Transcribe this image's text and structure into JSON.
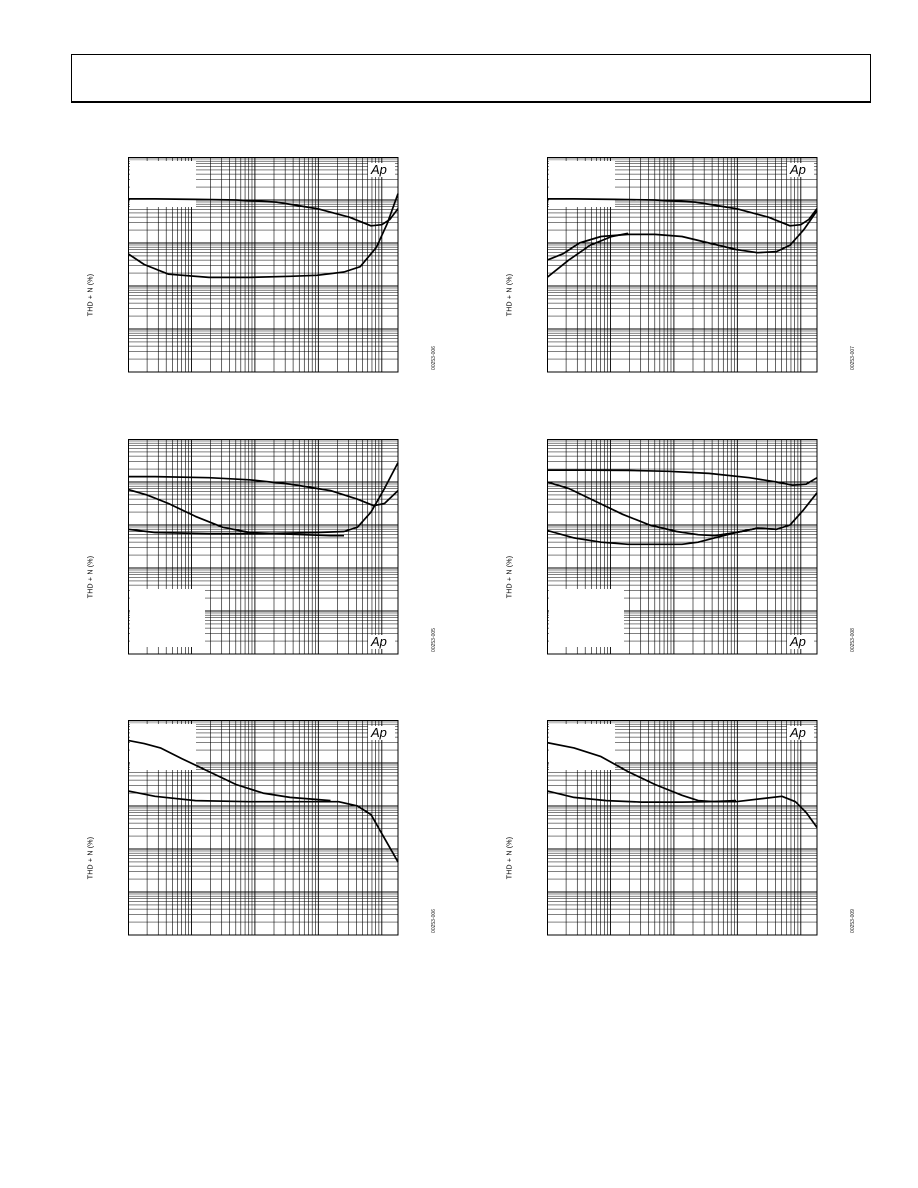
{
  "header": {},
  "chart_data": [
    {
      "type": "line",
      "ylabel": "THD + N (%)",
      "figure_id": "00253-006",
      "logo": "Ap",
      "logo_position": "top-right",
      "grid": true,
      "x_scale": "log",
      "y_scale": "log",
      "series": [
        {
          "points": [
            [
              0,
              0.805
            ],
            [
              0.1,
              0.805
            ],
            [
              0.25,
              0.803
            ],
            [
              0.4,
              0.8
            ],
            [
              0.55,
              0.79
            ],
            [
              0.7,
              0.76
            ],
            [
              0.82,
              0.72
            ],
            [
              0.9,
              0.68
            ],
            [
              0.94,
              0.685
            ],
            [
              0.97,
              0.71
            ],
            [
              1.0,
              0.76
            ]
          ]
        },
        {
          "points": [
            [
              0,
              0.55
            ],
            [
              0.06,
              0.5
            ],
            [
              0.15,
              0.455
            ],
            [
              0.3,
              0.44
            ],
            [
              0.45,
              0.44
            ],
            [
              0.6,
              0.445
            ],
            [
              0.7,
              0.45
            ],
            [
              0.8,
              0.465
            ],
            [
              0.86,
              0.49
            ],
            [
              0.92,
              0.58
            ],
            [
              0.96,
              0.69
            ],
            [
              1.0,
              0.83
            ]
          ]
        }
      ]
    },
    {
      "type": "line",
      "ylabel": "THD + N (%)",
      "figure_id": "00253-007",
      "logo": "Ap",
      "logo_position": "top-right",
      "grid": true,
      "x_scale": "log",
      "y_scale": "log",
      "series": [
        {
          "points": [
            [
              0,
              0.805
            ],
            [
              0.1,
              0.805
            ],
            [
              0.25,
              0.803
            ],
            [
              0.4,
              0.8
            ],
            [
              0.55,
              0.79
            ],
            [
              0.7,
              0.76
            ],
            [
              0.82,
              0.72
            ],
            [
              0.9,
              0.68
            ],
            [
              0.94,
              0.685
            ],
            [
              0.97,
              0.71
            ],
            [
              1.0,
              0.76
            ]
          ]
        },
        {
          "points": [
            [
              0,
              0.52
            ],
            [
              0.06,
              0.55
            ],
            [
              0.12,
              0.6
            ],
            [
              0.2,
              0.63
            ],
            [
              0.3,
              0.64
            ],
            [
              0.4,
              0.64
            ],
            [
              0.5,
              0.63
            ],
            [
              0.6,
              0.6
            ],
            [
              0.7,
              0.57
            ],
            [
              0.78,
              0.555
            ],
            [
              0.85,
              0.56
            ],
            [
              0.9,
              0.59
            ],
            [
              0.95,
              0.66
            ],
            [
              1.0,
              0.75
            ]
          ]
        },
        {
          "points": [
            [
              0,
              0.44
            ],
            [
              0.08,
              0.52
            ],
            [
              0.16,
              0.59
            ],
            [
              0.24,
              0.63
            ],
            [
              0.3,
              0.645
            ]
          ]
        }
      ]
    },
    {
      "type": "line",
      "ylabel": "THD + N (%)",
      "figure_id": "00253-005",
      "logo": "Ap",
      "logo_position": "bottom-right",
      "grid": true,
      "x_scale": "log",
      "y_scale": "log",
      "series": [
        {
          "points": [
            [
              0,
              0.825
            ],
            [
              0.1,
              0.825
            ],
            [
              0.3,
              0.82
            ],
            [
              0.45,
              0.81
            ],
            [
              0.6,
              0.79
            ],
            [
              0.75,
              0.76
            ],
            [
              0.85,
              0.72
            ],
            [
              0.91,
              0.69
            ],
            [
              0.95,
              0.7
            ],
            [
              1.0,
              0.76
            ]
          ]
        },
        {
          "points": [
            [
              0,
              0.765
            ],
            [
              0.07,
              0.74
            ],
            [
              0.15,
              0.7
            ],
            [
              0.25,
              0.64
            ],
            [
              0.35,
              0.59
            ],
            [
              0.45,
              0.565
            ],
            [
              0.55,
              0.56
            ],
            [
              0.65,
              0.555
            ],
            [
              0.75,
              0.55
            ],
            [
              0.8,
              0.55
            ]
          ]
        },
        {
          "points": [
            [
              0,
              0.58
            ],
            [
              0.1,
              0.565
            ],
            [
              0.3,
              0.56
            ],
            [
              0.5,
              0.56
            ],
            [
              0.7,
              0.565
            ],
            [
              0.8,
              0.57
            ],
            [
              0.85,
              0.59
            ],
            [
              0.9,
              0.66
            ],
            [
              0.95,
              0.77
            ],
            [
              1.0,
              0.89
            ]
          ]
        }
      ]
    },
    {
      "type": "line",
      "ylabel": "THD + N (%)",
      "figure_id": "00253-008",
      "logo": "Ap",
      "logo_position": "bottom-right",
      "grid": true,
      "x_scale": "log",
      "y_scale": "log",
      "series": [
        {
          "points": [
            [
              0,
              0.855
            ],
            [
              0.15,
              0.855
            ],
            [
              0.3,
              0.854
            ],
            [
              0.45,
              0.85
            ],
            [
              0.6,
              0.84
            ],
            [
              0.75,
              0.82
            ],
            [
              0.85,
              0.8
            ],
            [
              0.91,
              0.785
            ],
            [
              0.96,
              0.79
            ],
            [
              1.0,
              0.82
            ]
          ]
        },
        {
          "points": [
            [
              0,
              0.8
            ],
            [
              0.08,
              0.77
            ],
            [
              0.18,
              0.71
            ],
            [
              0.28,
              0.65
            ],
            [
              0.38,
              0.6
            ],
            [
              0.48,
              0.57
            ],
            [
              0.56,
              0.555
            ],
            [
              0.62,
              0.55
            ],
            [
              0.7,
              0.565
            ],
            [
              0.78,
              0.585
            ],
            [
              0.85,
              0.58
            ],
            [
              0.9,
              0.6
            ],
            [
              0.95,
              0.67
            ],
            [
              1.0,
              0.75
            ]
          ]
        },
        {
          "points": [
            [
              0,
              0.575
            ],
            [
              0.1,
              0.54
            ],
            [
              0.2,
              0.52
            ],
            [
              0.3,
              0.51
            ],
            [
              0.4,
              0.51
            ],
            [
              0.5,
              0.51
            ],
            [
              0.56,
              0.52
            ],
            [
              0.62,
              0.54
            ],
            [
              0.7,
              0.565
            ],
            [
              0.78,
              0.585
            ],
            [
              0.85,
              0.58
            ]
          ]
        }
      ]
    },
    {
      "type": "line",
      "ylabel": "THD + N (%)",
      "figure_id": "00253-006",
      "logo": "Ap",
      "logo_position": "top-right",
      "grid": true,
      "x_scale": "log",
      "y_scale": "log",
      "series": [
        {
          "points": [
            [
              0,
              0.905
            ],
            [
              0.06,
              0.89
            ],
            [
              0.12,
              0.87
            ],
            [
              0.2,
              0.82
            ],
            [
              0.3,
              0.76
            ],
            [
              0.4,
              0.7
            ],
            [
              0.5,
              0.66
            ],
            [
              0.6,
              0.64
            ],
            [
              0.7,
              0.63
            ],
            [
              0.75,
              0.625
            ]
          ]
        },
        {
          "points": [
            [
              0,
              0.67
            ],
            [
              0.1,
              0.645
            ],
            [
              0.25,
              0.625
            ],
            [
              0.45,
              0.62
            ],
            [
              0.65,
              0.62
            ],
            [
              0.78,
              0.62
            ],
            [
              0.85,
              0.6
            ],
            [
              0.9,
              0.56
            ],
            [
              0.95,
              0.45
            ],
            [
              1.0,
              0.34
            ]
          ]
        }
      ]
    },
    {
      "type": "line",
      "ylabel": "THD + N (%)",
      "figure_id": "00253-009",
      "logo": "Ap",
      "logo_position": "top-right",
      "grid": true,
      "x_scale": "log",
      "y_scale": "log",
      "series": [
        {
          "points": [
            [
              0,
              0.895
            ],
            [
              0.1,
              0.87
            ],
            [
              0.2,
              0.83
            ],
            [
              0.3,
              0.76
            ],
            [
              0.4,
              0.7
            ],
            [
              0.5,
              0.65
            ],
            [
              0.56,
              0.625
            ],
            [
              0.62,
              0.62
            ],
            [
              0.7,
              0.62
            ],
            [
              0.8,
              0.635
            ],
            [
              0.87,
              0.645
            ],
            [
              0.92,
              0.62
            ],
            [
              0.96,
              0.57
            ],
            [
              1.0,
              0.5
            ]
          ]
        },
        {
          "points": [
            [
              0,
              0.67
            ],
            [
              0.1,
              0.64
            ],
            [
              0.22,
              0.625
            ],
            [
              0.35,
              0.618
            ],
            [
              0.5,
              0.618
            ],
            [
              0.6,
              0.62
            ],
            [
              0.7,
              0.625
            ]
          ]
        }
      ]
    }
  ]
}
